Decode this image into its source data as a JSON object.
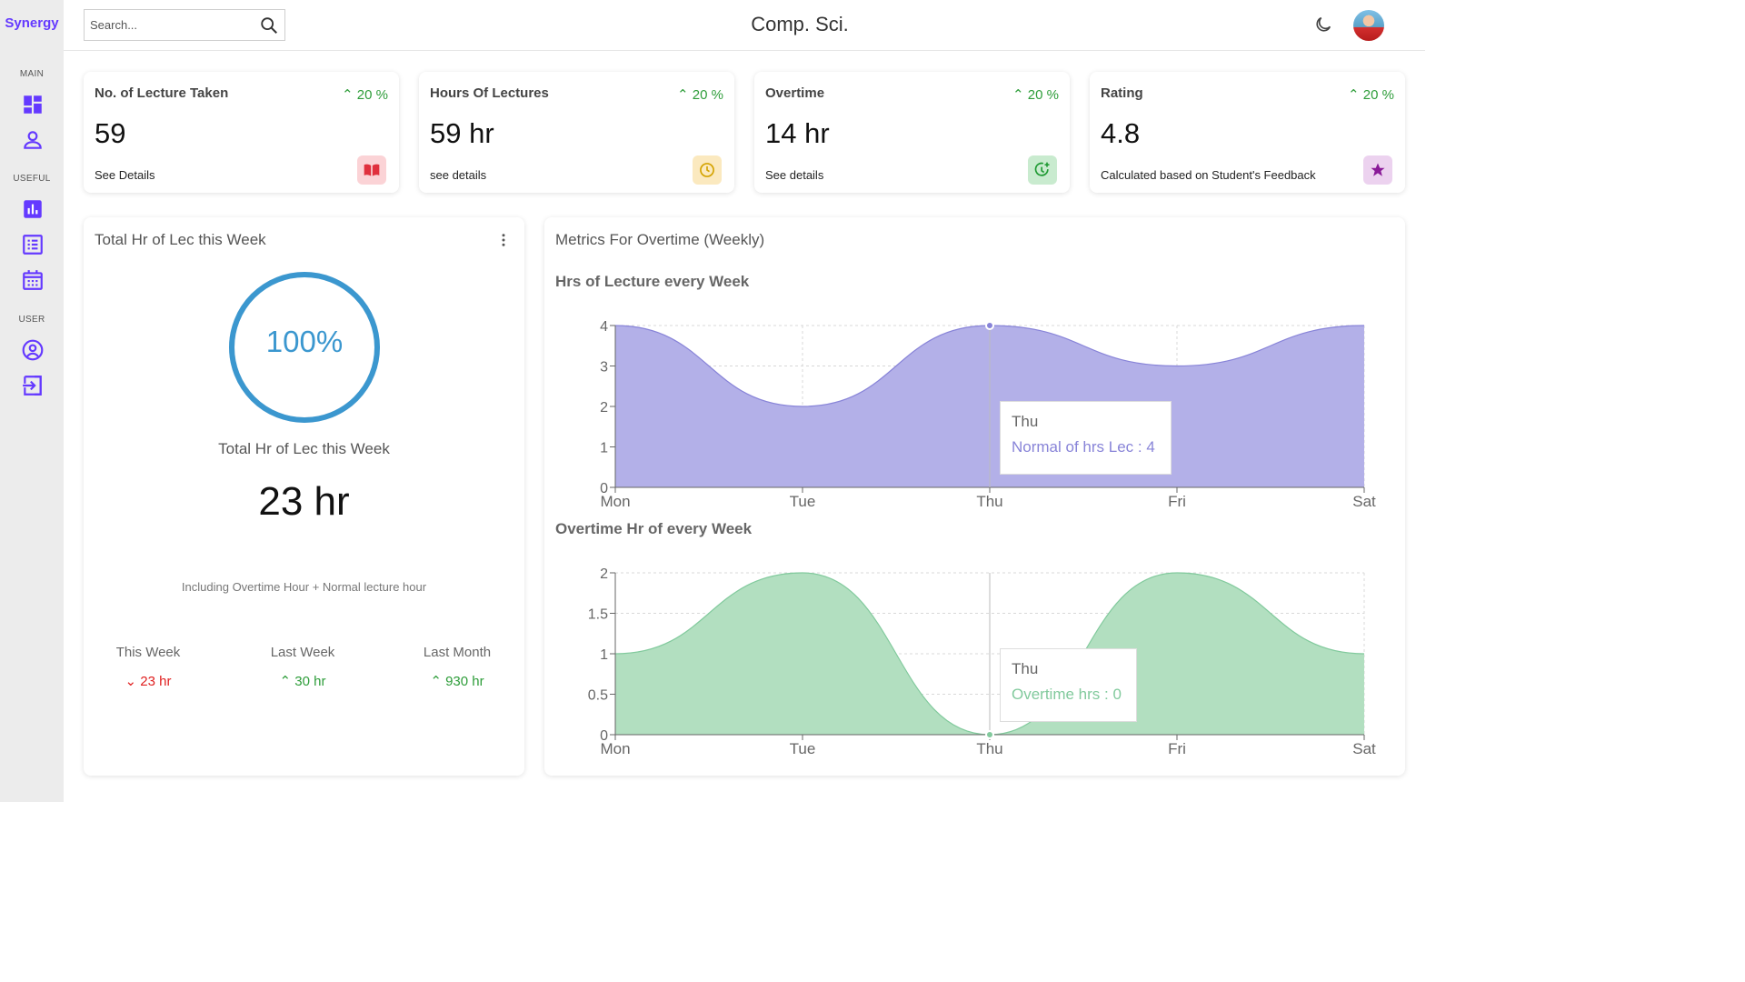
{
  "brand": "Synergy",
  "header": {
    "title": "Comp. Sci.",
    "search_placeholder": "Search..."
  },
  "sidebar": {
    "sections": [
      {
        "label": "MAIN",
        "items": [
          "dashboard-icon",
          "person-icon"
        ]
      },
      {
        "label": "USEFUL",
        "items": [
          "bar-chart-icon",
          "list-icon",
          "calendar-icon"
        ]
      },
      {
        "label": "USER",
        "items": [
          "account-circle-icon",
          "logout-icon"
        ]
      }
    ]
  },
  "kpis": [
    {
      "title": "No. of Lecture Taken",
      "delta": "20 %",
      "value": "59",
      "link": "See Details",
      "icon": "book-icon",
      "icon_bg": "#fbd3d6",
      "icon_color": "#e0303d"
    },
    {
      "title": "Hours Of Lectures",
      "delta": "20 %",
      "value": "59 hr",
      "link": "see details",
      "icon": "clock-icon",
      "icon_bg": "#fbe9bf",
      "icon_color": "#d4a300"
    },
    {
      "title": "Overtime",
      "delta": "20 %",
      "value": "14 hr",
      "link": "See details",
      "icon": "timer-plus-icon",
      "icon_bg": "#c9ebcf",
      "icon_color": "#1f9a33"
    },
    {
      "title": "Rating",
      "delta": "20 %",
      "value": "4.8",
      "link": "Calculated based on Student's Feedback",
      "icon": "star-icon",
      "icon_bg": "#ecd2ef",
      "icon_color": "#8a1a98"
    }
  ],
  "weekly": {
    "title": "Total Hr of Lec this Week",
    "progress_percent": 100,
    "progress_label": "100%",
    "subtitle": "Total Hr of Lec this Week",
    "total": "23 hr",
    "note": "Including Overtime Hour + Normal lecture hour",
    "stats": [
      {
        "label": "This Week",
        "value": "23 hr",
        "trend": "down",
        "color": "#e02020"
      },
      {
        "label": "Last Week",
        "value": "30 hr",
        "trend": "up",
        "color": "#2e9d3a"
      },
      {
        "label": "Last Month",
        "value": "930 hr",
        "trend": "up",
        "color": "#2e9d3a"
      }
    ]
  },
  "metrics": {
    "title": "Metrics For Overtime (Weekly)",
    "charts": [
      {
        "title": "Hrs of Lecture every Week",
        "tooltip_day": "Thu",
        "tooltip_text": "Normal of hrs Lec : 4"
      },
      {
        "title": "Overtime Hr of every Week",
        "tooltip_day": "Thu",
        "tooltip_text": "Overtime hrs : 0"
      }
    ]
  },
  "chart_data": [
    {
      "type": "area",
      "title": "Hrs of Lecture every Week",
      "categories": [
        "Mon",
        "Tue",
        "Thu",
        "Fri",
        "Sat"
      ],
      "series": [
        {
          "name": "Normal of hrs Lec",
          "values": [
            4,
            2,
            4,
            3,
            4
          ]
        }
      ],
      "yticks": [
        "0",
        "1",
        "2",
        "3",
        "4"
      ],
      "ylim": [
        0,
        4
      ],
      "grid": true,
      "color": "#8884d8",
      "fill": "#b3b0e8",
      "active_index": 2
    },
    {
      "type": "area",
      "title": "Overtime Hr of every Week",
      "categories": [
        "Mon",
        "Tue",
        "Thu",
        "Fri",
        "Sat"
      ],
      "series": [
        {
          "name": "Overtime hrs",
          "values": [
            1,
            2,
            0,
            2,
            1
          ]
        }
      ],
      "yticks": [
        "0",
        "0.5",
        "1",
        "1.5",
        "2"
      ],
      "ylim": [
        0,
        2
      ],
      "grid": true,
      "color": "#82ca9d",
      "fill": "#b2dfc0",
      "active_index": 2
    }
  ]
}
